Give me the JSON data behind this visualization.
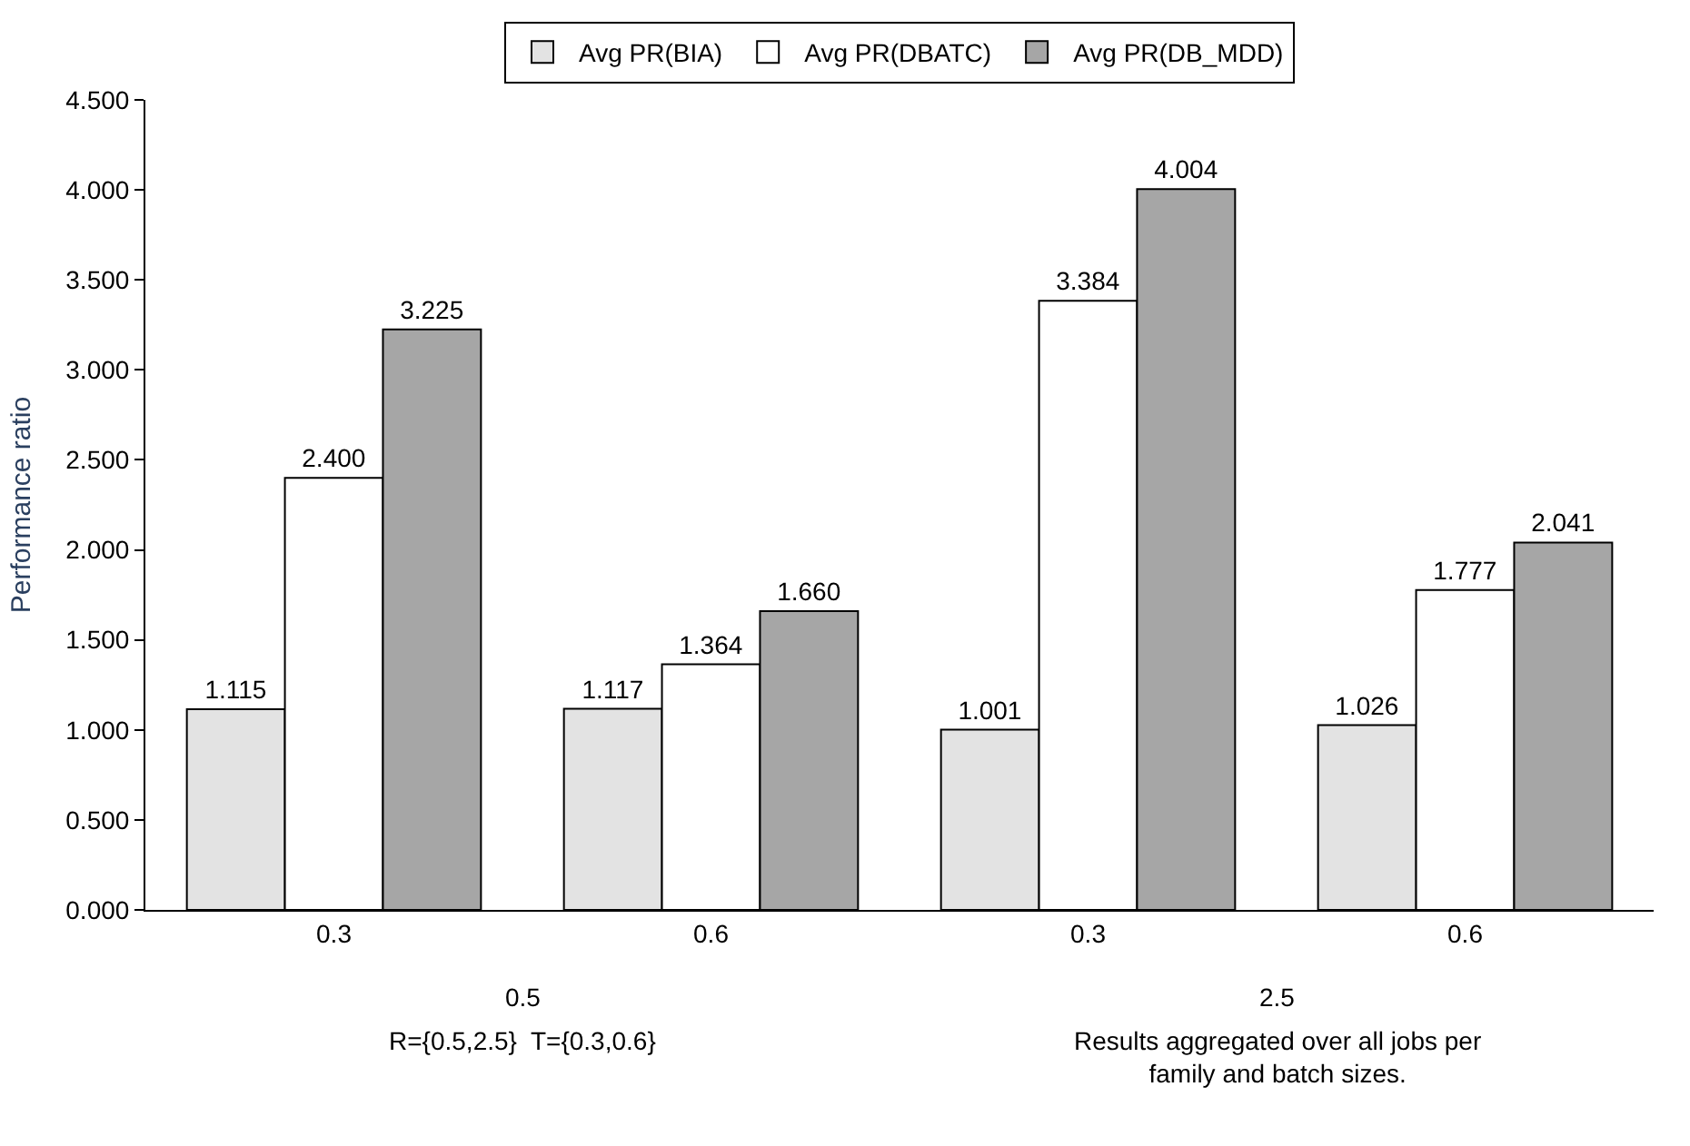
{
  "chart_data": {
    "type": "bar",
    "ylabel": "Performance ratio",
    "categories": [
      "0.3",
      "0.6",
      "0.3",
      "0.6"
    ],
    "series": [
      {
        "name": "Avg PR(BIA)",
        "color": "#e3e3e3",
        "values": [
          1.115,
          1.117,
          1.001,
          1.026
        ],
        "value_labels": [
          "1.115",
          "1.117",
          "1.001",
          "1.026"
        ]
      },
      {
        "name": "Avg PR(DBATC)",
        "color": "#ffffff",
        "values": [
          2.4,
          1.364,
          3.384,
          1.777
        ],
        "value_labels": [
          "2.400",
          "1.364",
          "3.384",
          "1.777"
        ]
      },
      {
        "name": "Avg PR(DB_MDD)",
        "color": "#a6a6a6",
        "values": [
          3.225,
          1.66,
          4.004,
          2.041
        ],
        "value_labels": [
          "3.225",
          "1.660",
          "4.004",
          "2.041"
        ]
      }
    ],
    "ylim": [
      0,
      4.5
    ],
    "yticks": [
      {
        "value": 0,
        "label": "0.000"
      },
      {
        "value": 0.5,
        "label": "0.500"
      },
      {
        "value": 1,
        "label": "1.000"
      },
      {
        "value": 1.5,
        "label": "1.500"
      },
      {
        "value": 2,
        "label": "2.000"
      },
      {
        "value": 2.5,
        "label": "2.500"
      },
      {
        "value": 3,
        "label": "3.000"
      },
      {
        "value": 3.5,
        "label": "3.500"
      },
      {
        "value": 4,
        "label": "4.000"
      },
      {
        "value": 4.5,
        "label": "4.500"
      }
    ],
    "grid": false,
    "legend": "top",
    "annotations": [
      "0.5",
      "2.5",
      "R={0.5,2.5}  T={0.3,0.6}",
      "Results aggregated over all jobs per family and batch sizes."
    ]
  }
}
